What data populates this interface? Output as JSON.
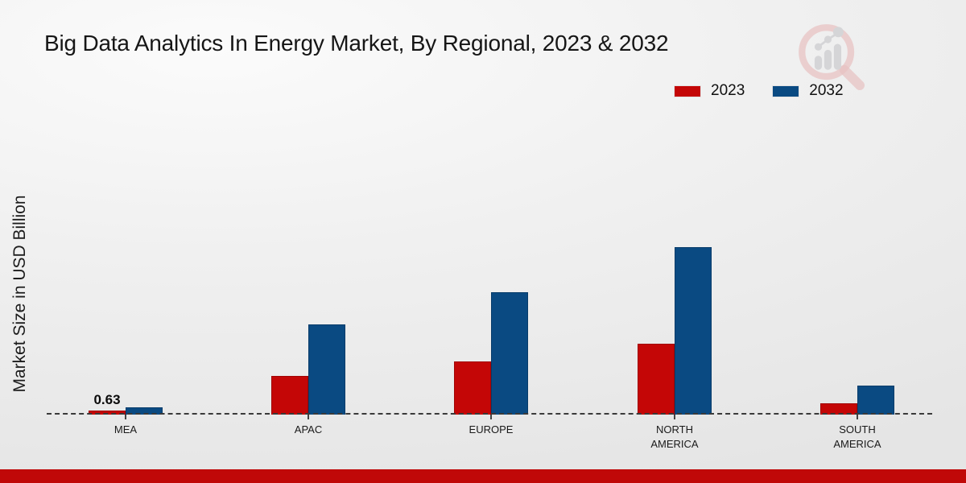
{
  "title": "Big Data Analytics In Energy Market, By Regional, 2023 & 2032",
  "ylabel": "Market Size in USD Billion",
  "footer_bar_color": "#c00808",
  "colors": {
    "series_2023": "#c40606",
    "series_2032": "#0a4a82",
    "baseline": "#3a3a3a"
  },
  "chart_data": {
    "type": "bar",
    "title": "Big Data Analytics In Energy Market, By Regional, 2023 & 2032",
    "xlabel": "",
    "ylabel": "Market Size in USD Billion",
    "categories": [
      "MEA",
      "APAC",
      "EUROPE",
      "NORTH AMERICA",
      "SOUTH AMERICA"
    ],
    "series": [
      {
        "name": "2023",
        "color": "#c40606",
        "values": [
          0.63,
          6.0,
          8.2,
          11.0,
          1.8
        ],
        "data_labels": [
          "0.63",
          "",
          "",
          "",
          ""
        ]
      },
      {
        "name": "2032",
        "color": "#0a4a82",
        "values": [
          1.1,
          14.0,
          19.0,
          26.0,
          4.5
        ],
        "data_labels": [
          "",
          "",
          "",
          "",
          ""
        ]
      }
    ],
    "ylim": [
      0,
      30
    ],
    "grid": false,
    "y_axis_ticks_visible": false,
    "legend_position": "top-right",
    "baseline_style": "dashed"
  }
}
